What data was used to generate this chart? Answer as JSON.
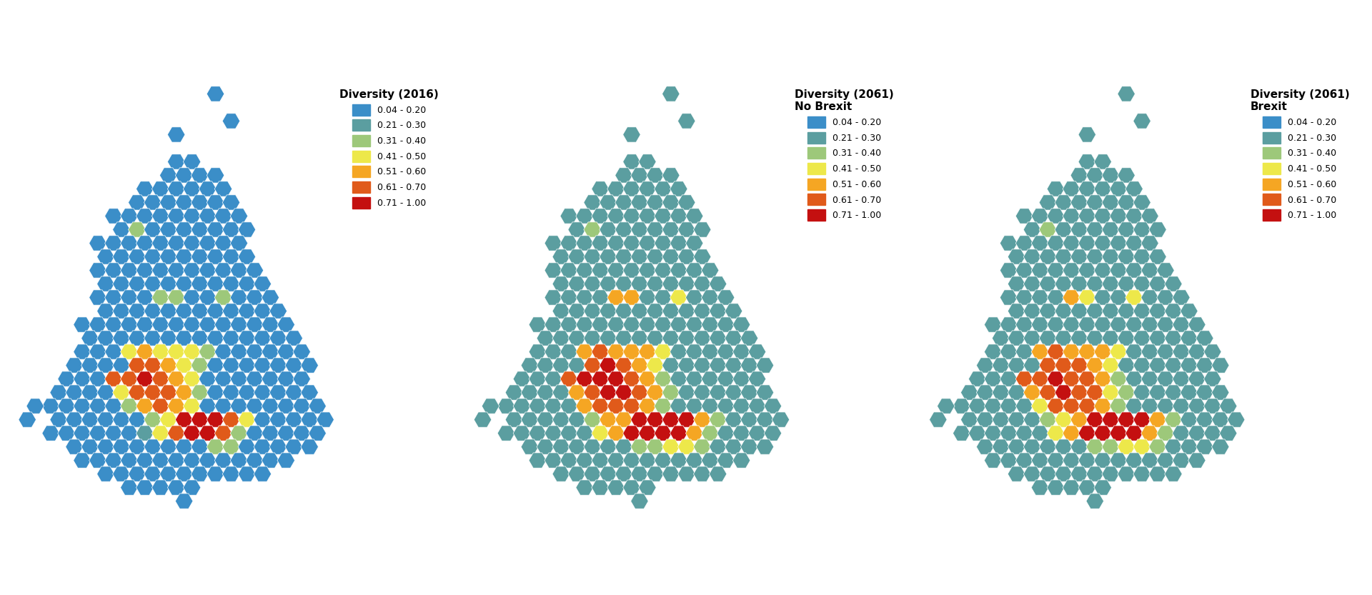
{
  "panel_titles": [
    "Diversity (2016)",
    "Diversity (2061)\nNo Brexit",
    "Diversity (2061)\nBrexit"
  ],
  "legend_labels": [
    "0.04 - 0.20",
    "0.21 - 0.30",
    "0.31 - 0.40",
    "0.41 - 0.50",
    "0.51 - 0.60",
    "0.61 - 0.70",
    "0.71 - 1.00"
  ],
  "colors": [
    "#3B8EC8",
    "#5B9EA0",
    "#9DC87A",
    "#EDE84A",
    "#F5A623",
    "#E05A1A",
    "#C41010"
  ],
  "background_color": "#FFFFFF",
  "figsize": [
    19.2,
    8.33
  ],
  "dpi": 100,
  "hex_size": 0.48
}
